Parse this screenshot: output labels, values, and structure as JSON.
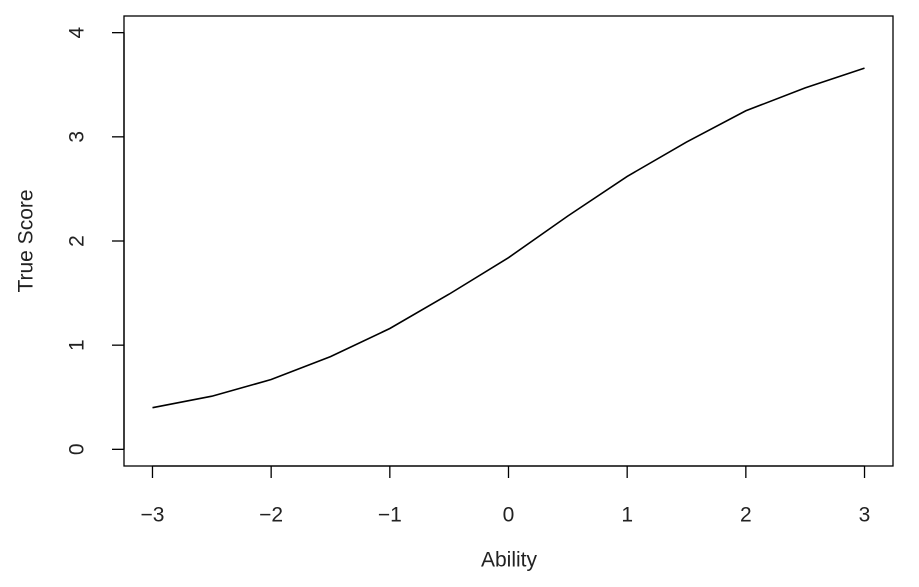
{
  "chart_data": {
    "type": "line",
    "x_label": "Ability",
    "y_label": "True Score",
    "x": [
      -3,
      -2.5,
      -2,
      -1.5,
      -1,
      -0.5,
      0,
      0.5,
      1,
      1.5,
      2,
      2.5,
      3
    ],
    "series": [
      {
        "color": "#000000",
        "values": [
          0.4,
          0.51,
          0.67,
          0.89,
          1.16,
          1.49,
          1.84,
          2.24,
          2.62,
          2.95,
          3.25,
          3.47,
          3.66
        ]
      }
    ],
    "xlim": [
      -3.24,
      3.24
    ],
    "ylim": [
      -0.16,
      4.16
    ],
    "xticks": [
      {
        "value": -3,
        "label": "−3"
      },
      {
        "value": -2,
        "label": "−2"
      },
      {
        "value": -1,
        "label": "−1"
      },
      0,
      1,
      2,
      3
    ],
    "yticks": [
      0,
      1,
      2,
      3,
      4
    ]
  }
}
